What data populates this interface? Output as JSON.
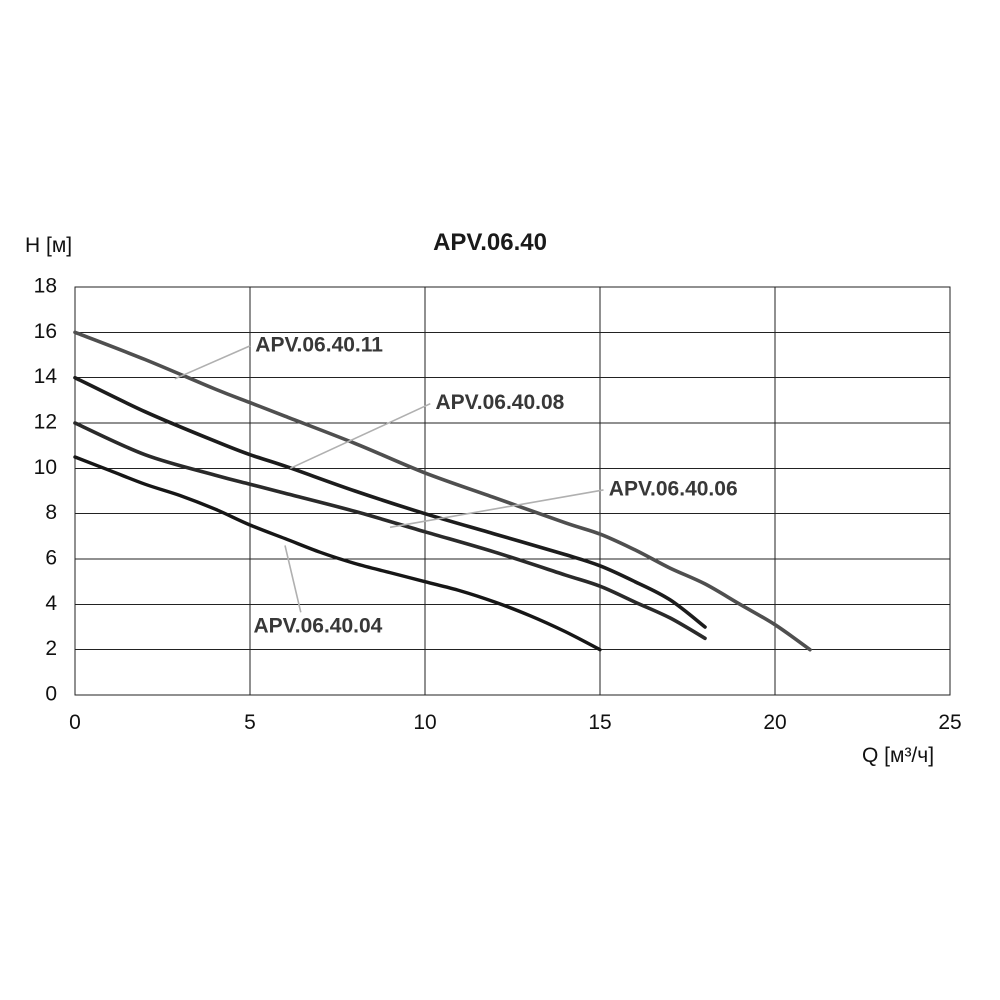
{
  "title": "APV.06.40",
  "chart_data": {
    "type": "line",
    "title": "APV.06.40",
    "xlabel": "Q [м³/ч]",
    "ylabel": "H [м]",
    "xlim": [
      0,
      25
    ],
    "ylim": [
      0,
      18
    ],
    "x_ticks": [
      0,
      5,
      10,
      15,
      20,
      25
    ],
    "y_ticks": [
      0,
      2,
      4,
      6,
      8,
      10,
      12,
      14,
      16,
      18
    ],
    "grid": true,
    "legend_position": "inline-annotations",
    "style": {
      "grid_color": "#222222",
      "border_color": "#222222",
      "tick_text_color": "#111111",
      "annotation_text_color": "#383838",
      "leader_line_color": "#b0b0b0",
      "background": "#ffffff"
    },
    "series": [
      {
        "name": "APV.06.40.11",
        "color": "#4f4f4f",
        "width": 3.6,
        "points": [
          [
            0,
            16
          ],
          [
            2,
            14.8
          ],
          [
            4,
            13.5
          ],
          [
            5,
            12.9
          ],
          [
            6,
            12.3
          ],
          [
            8,
            11.1
          ],
          [
            10,
            9.8
          ],
          [
            12,
            8.7
          ],
          [
            14,
            7.6
          ],
          [
            15,
            7.1
          ],
          [
            16,
            6.4
          ],
          [
            17,
            5.6
          ],
          [
            18,
            4.9
          ],
          [
            19,
            4.0
          ],
          [
            20,
            3.1
          ],
          [
            21,
            2.0
          ]
        ]
      },
      {
        "name": "APV.06.40.08",
        "color": "#1c1c1c",
        "width": 3.6,
        "points": [
          [
            0,
            14
          ],
          [
            2,
            12.5
          ],
          [
            4,
            11.2
          ],
          [
            5,
            10.6
          ],
          [
            6,
            10.1
          ],
          [
            8,
            9.0
          ],
          [
            10,
            8.0
          ],
          [
            12,
            7.1
          ],
          [
            14,
            6.2
          ],
          [
            15,
            5.7
          ],
          [
            16,
            5.0
          ],
          [
            17,
            4.2
          ],
          [
            18,
            3.0
          ]
        ]
      },
      {
        "name": "APV.06.40.06",
        "color": "#2a2a2a",
        "width": 3.6,
        "points": [
          [
            0,
            12
          ],
          [
            2,
            10.6
          ],
          [
            4,
            9.7
          ],
          [
            5,
            9.3
          ],
          [
            6,
            8.9
          ],
          [
            8,
            8.1
          ],
          [
            10,
            7.2
          ],
          [
            12,
            6.3
          ],
          [
            14,
            5.3
          ],
          [
            15,
            4.8
          ],
          [
            16,
            4.1
          ],
          [
            17,
            3.4
          ],
          [
            18,
            2.5
          ]
        ]
      },
      {
        "name": "APV.06.40.04",
        "color": "#161616",
        "width": 3.4,
        "points": [
          [
            0,
            10.5
          ],
          [
            1,
            9.9
          ],
          [
            2,
            9.3
          ],
          [
            3,
            8.8
          ],
          [
            4,
            8.2
          ],
          [
            5,
            7.5
          ],
          [
            6,
            6.9
          ],
          [
            7,
            6.3
          ],
          [
            8,
            5.8
          ],
          [
            9,
            5.4
          ],
          [
            10,
            5.0
          ],
          [
            11,
            4.6
          ],
          [
            12,
            4.1
          ],
          [
            13,
            3.5
          ],
          [
            14,
            2.8
          ],
          [
            15,
            2.0
          ]
        ]
      }
    ],
    "annotations": [
      {
        "text": "APV.06.40.11",
        "label_xy": [
          5.15,
          15.4
        ],
        "leader": [
          [
            5.0,
            15.4
          ],
          [
            2.85,
            13.95
          ]
        ]
      },
      {
        "text": "APV.06.40.08",
        "label_xy": [
          10.3,
          12.85
        ],
        "leader": [
          [
            10.15,
            12.85
          ],
          [
            6.15,
            10.0
          ]
        ]
      },
      {
        "text": "APV.06.40.06",
        "label_xy": [
          15.25,
          9.05
        ],
        "leader": [
          [
            15.1,
            9.05
          ],
          [
            9.0,
            7.4
          ]
        ]
      },
      {
        "text": "APV.06.40.04",
        "label_xy": [
          5.1,
          3.0
        ],
        "leader": [
          [
            6.45,
            3.65
          ],
          [
            6.0,
            6.6
          ]
        ]
      }
    ]
  }
}
